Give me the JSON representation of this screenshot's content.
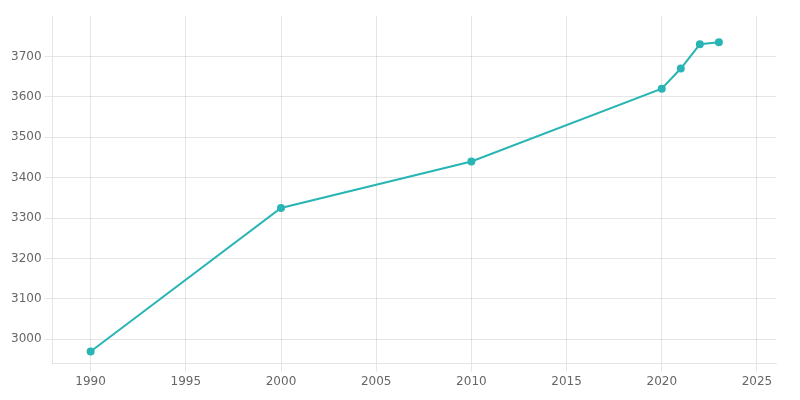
{
  "chart_data": {
    "type": "line",
    "x": [
      1990,
      2000,
      2010,
      2020,
      2021,
      2022,
      2023
    ],
    "values": [
      2970,
      3325,
      3440,
      3620,
      3670,
      3730,
      3735
    ],
    "color": "#2ab5b5",
    "marker": "circle",
    "xlim": [
      1988,
      2026
    ],
    "ylim": [
      2940,
      3800
    ],
    "xticks": [
      1990,
      1995,
      2000,
      2005,
      2010,
      2015,
      2020,
      2025
    ],
    "yticks": [
      3000,
      3100,
      3200,
      3300,
      3400,
      3500,
      3600,
      3700
    ],
    "grid": true
  }
}
